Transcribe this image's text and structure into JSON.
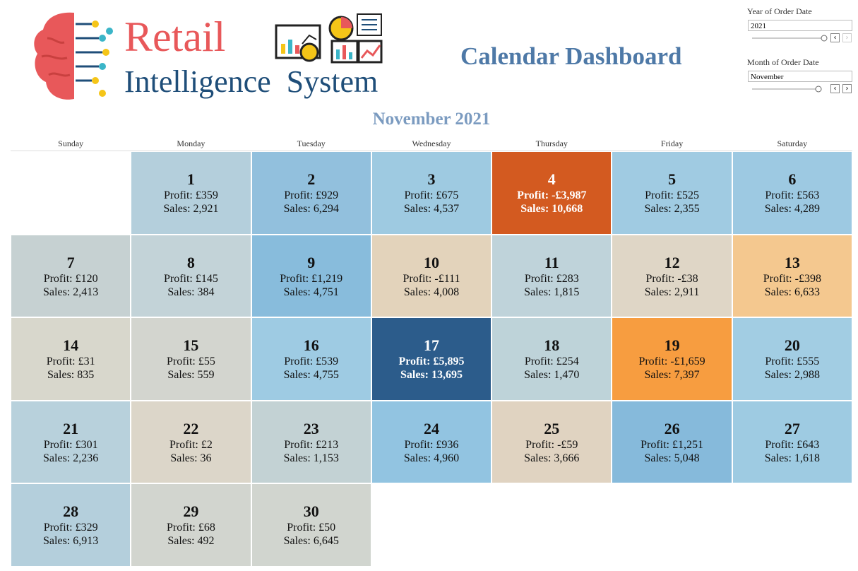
{
  "header": {
    "logo_top": "Retail",
    "logo_bottom": "Intelligence  System",
    "title": "Calendar Dashboard"
  },
  "filters": [
    {
      "label": "Year of Order Date",
      "value": "2021"
    },
    {
      "label": "Month of Order Date",
      "value": "November"
    }
  ],
  "calendar": {
    "title": "November 2021",
    "weekdays": [
      "Sunday",
      "Monday",
      "Tuesday",
      "Wednesday",
      "Thursday",
      "Friday",
      "Saturday"
    ],
    "weeks": [
      [
        null,
        {
          "day": 1,
          "profit": "Profit: £359",
          "sales": "Sales: 2,921",
          "color": "#b4cfdc",
          "text_color": "#111"
        },
        {
          "day": 2,
          "profit": "Profit: £929",
          "sales": "Sales: 6,294",
          "color": "#92c0dd",
          "text_color": "#111"
        },
        {
          "day": 3,
          "profit": "Profit: £675",
          "sales": "Sales: 4,537",
          "color": "#9ecae1",
          "text_color": "#111"
        },
        {
          "day": 4,
          "profit": "Profit: -£3,987",
          "sales": "Sales: 10,668",
          "color": "#d35a20",
          "text_color": "#ffffff"
        },
        {
          "day": 5,
          "profit": "Profit: £525",
          "sales": "Sales: 2,355",
          "color": "#a0cbe2",
          "text_color": "#111"
        },
        {
          "day": 6,
          "profit": "Profit: £563",
          "sales": "Sales: 4,289",
          "color": "#9dc9e2",
          "text_color": "#111"
        }
      ],
      [
        {
          "day": 7,
          "profit": "Profit: £120",
          "sales": "Sales: 2,413",
          "color": "#c6d1d2",
          "text_color": "#111"
        },
        {
          "day": 8,
          "profit": "Profit: £145",
          "sales": "Sales: 384",
          "color": "#c3d3d8",
          "text_color": "#111"
        },
        {
          "day": 9,
          "profit": "Profit: £1,219",
          "sales": "Sales: 4,751",
          "color": "#88bcdc",
          "text_color": "#111"
        },
        {
          "day": 10,
          "profit": "Profit: -£111",
          "sales": "Sales: 4,008",
          "color": "#e3d3bb",
          "text_color": "#111"
        },
        {
          "day": 11,
          "profit": "Profit: £283",
          "sales": "Sales: 1,815",
          "color": "#bfd3da",
          "text_color": "#111"
        },
        {
          "day": 12,
          "profit": "Profit: -£38",
          "sales": "Sales: 2,911",
          "color": "#dfd6c6",
          "text_color": "#111"
        },
        {
          "day": 13,
          "profit": "Profit: -£398",
          "sales": "Sales: 6,633",
          "color": "#f4c88f",
          "text_color": "#111"
        }
      ],
      [
        {
          "day": 14,
          "profit": "Profit: £31",
          "sales": "Sales: 835",
          "color": "#d8d7cc",
          "text_color": "#111"
        },
        {
          "day": 15,
          "profit": "Profit: £55",
          "sales": "Sales: 559",
          "color": "#d3d5cf",
          "text_color": "#111"
        },
        {
          "day": 16,
          "profit": "Profit: £539",
          "sales": "Sales: 4,755",
          "color": "#9ecbe3",
          "text_color": "#111"
        },
        {
          "day": 17,
          "profit": "Profit: £5,895",
          "sales": "Sales: 13,695",
          "color": "#2c5c8b",
          "text_color": "#ffffff"
        },
        {
          "day": 18,
          "profit": "Profit: £254",
          "sales": "Sales: 1,470",
          "color": "#bed3d9",
          "text_color": "#111"
        },
        {
          "day": 19,
          "profit": "Profit: -£1,659",
          "sales": "Sales: 7,397",
          "color": "#f79d40",
          "text_color": "#111"
        },
        {
          "day": 20,
          "profit": "Profit: £555",
          "sales": "Sales: 2,988",
          "color": "#a2cde3",
          "text_color": "#111"
        }
      ],
      [
        {
          "day": 21,
          "profit": "Profit: £301",
          "sales": "Sales: 2,236",
          "color": "#b8d1dc",
          "text_color": "#111"
        },
        {
          "day": 22,
          "profit": "Profit: £2",
          "sales": "Sales: 36",
          "color": "#dcd6c9",
          "text_color": "#111"
        },
        {
          "day": 23,
          "profit": "Profit: £213",
          "sales": "Sales: 1,153",
          "color": "#c3d2d4",
          "text_color": "#111"
        },
        {
          "day": 24,
          "profit": "Profit: £936",
          "sales": "Sales: 4,960",
          "color": "#92c4e1",
          "text_color": "#111"
        },
        {
          "day": 25,
          "profit": "Profit: -£59",
          "sales": "Sales: 3,666",
          "color": "#e0d3c1",
          "text_color": "#111"
        },
        {
          "day": 26,
          "profit": "Profit: £1,251",
          "sales": "Sales: 5,048",
          "color": "#86badb",
          "text_color": "#111"
        },
        {
          "day": 27,
          "profit": "Profit: £643",
          "sales": "Sales: 1,618",
          "color": "#9ecbe2",
          "text_color": "#111"
        }
      ],
      [
        {
          "day": 28,
          "profit": "Profit: £329",
          "sales": "Sales: 6,913",
          "color": "#b4cfdc",
          "text_color": "#111"
        },
        {
          "day": 29,
          "profit": "Profit: £68",
          "sales": "Sales: 492",
          "color": "#d2d5cf",
          "text_color": "#111"
        },
        {
          "day": 30,
          "profit": "Profit: £50",
          "sales": "Sales: 6,645",
          "color": "#d1d5cf",
          "text_color": "#111"
        },
        null,
        null,
        null,
        null
      ]
    ]
  }
}
